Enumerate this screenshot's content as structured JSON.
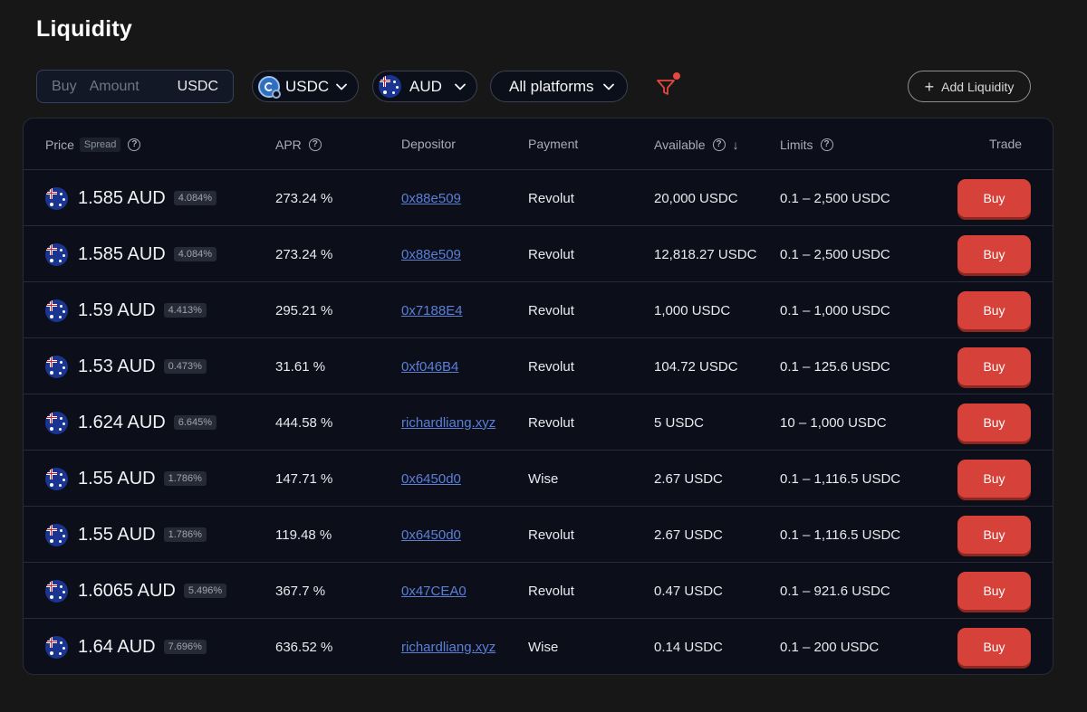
{
  "page": {
    "title": "Liquidity"
  },
  "toolbar": {
    "buy_label": "Buy",
    "amount_placeholder": "Amount",
    "amount_unit": "USDC",
    "token_label": "USDC",
    "currency_label": "AUD",
    "platform_label": "All platforms",
    "add_liquidity_label": "Add Liquidity"
  },
  "table": {
    "headers": {
      "price": "Price",
      "spread": "Spread",
      "apr": "APR",
      "depositor": "Depositor",
      "payment": "Payment",
      "available": "Available",
      "limits": "Limits",
      "trade": "Trade"
    },
    "buy_label": "Buy",
    "rows": [
      {
        "price": "1.585 AUD",
        "spread": "4.084%",
        "apr": "273.24 %",
        "depositor": "0x88e509",
        "payment": "Revolut",
        "available": "20,000 USDC",
        "limits": "0.1 – 2,500 USDC"
      },
      {
        "price": "1.585 AUD",
        "spread": "4.084%",
        "apr": "273.24 %",
        "depositor": "0x88e509",
        "payment": "Revolut",
        "available": "12,818.27 USDC",
        "limits": "0.1 – 2,500 USDC"
      },
      {
        "price": "1.59 AUD",
        "spread": "4.413%",
        "apr": "295.21 %",
        "depositor": "0x7188E4",
        "payment": "Revolut",
        "available": "1,000 USDC",
        "limits": "0.1 – 1,000 USDC"
      },
      {
        "price": "1.53 AUD",
        "spread": "0.473%",
        "apr": "31.61 %",
        "depositor": "0xf046B4",
        "payment": "Revolut",
        "available": "104.72 USDC",
        "limits": "0.1 – 125.6 USDC"
      },
      {
        "price": "1.624 AUD",
        "spread": "6.645%",
        "apr": "444.58 %",
        "depositor": "richardliang.xyz",
        "payment": "Revolut",
        "available": "5 USDC",
        "limits": "10 – 1,000 USDC"
      },
      {
        "price": "1.55 AUD",
        "spread": "1.786%",
        "apr": "147.71 %",
        "depositor": "0x6450d0",
        "payment": "Wise",
        "available": "2.67 USDC",
        "limits": "0.1 – 1,116.5 USDC"
      },
      {
        "price": "1.55 AUD",
        "spread": "1.786%",
        "apr": "119.48 %",
        "depositor": "0x6450d0",
        "payment": "Revolut",
        "available": "2.67 USDC",
        "limits": "0.1 – 1,116.5 USDC"
      },
      {
        "price": "1.6065 AUD",
        "spread": "5.496%",
        "apr": "367.7 %",
        "depositor": "0x47CEA0",
        "payment": "Revolut",
        "available": "0.47 USDC",
        "limits": "0.1 – 921.6 USDC"
      },
      {
        "price": "1.64 AUD",
        "spread": "7.696%",
        "apr": "636.52 %",
        "depositor": "richardliang.xyz",
        "payment": "Wise",
        "available": "0.14 USDC",
        "limits": "0.1 – 200 USDC"
      }
    ]
  },
  "colors": {
    "background": "#171717",
    "card": "#0c0f1a",
    "buy_button": "#d6423a",
    "link": "#5b7fd6",
    "filter_icon": "#e5483d"
  },
  "icons": {
    "token": "usdc-coin-icon",
    "currency": "australia-flag-icon",
    "filter": "filter-icon",
    "help": "question-circle-icon",
    "sort": "arrow-down-icon",
    "add": "plus-icon"
  }
}
